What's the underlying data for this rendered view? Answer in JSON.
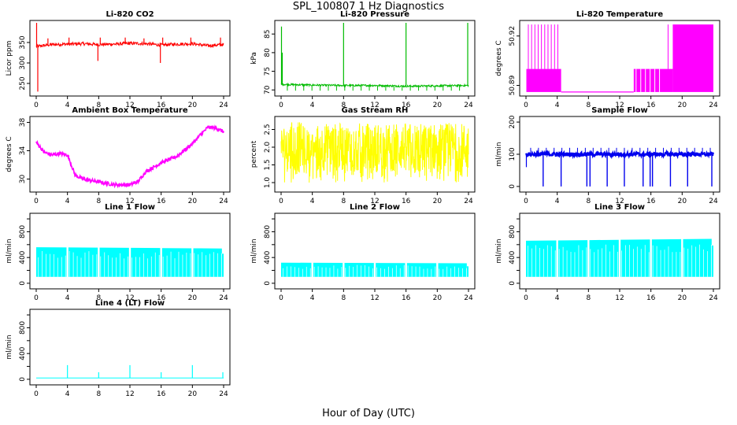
{
  "figure": {
    "title": "SPL_100807  1 Hz Diagnostics",
    "xlabel": "Hour of Day (UTC)"
  },
  "chart_data": [
    {
      "type": "line",
      "title": "Li-820 CO2",
      "ylabel": "Licor ppm",
      "xlim": [
        0,
        24
      ],
      "xticks": [
        0,
        4,
        8,
        12,
        16,
        20,
        24
      ],
      "ylim": [
        225,
        398
      ],
      "yticks": [
        250,
        300,
        350
      ],
      "color": "#ff0000",
      "profile": "co2",
      "series": [
        {
          "x": [
            0,
            2,
            4,
            6,
            8,
            10,
            12,
            14,
            16,
            18,
            20,
            22,
            24
          ],
          "y": [
            340,
            345,
            346,
            347,
            345,
            346,
            348,
            347,
            344,
            346,
            347,
            342,
            345
          ]
        }
      ],
      "spikes": [
        {
          "x": 0.05,
          "y": 398
        },
        {
          "x": 0.2,
          "y": 230
        },
        {
          "x": 1.5,
          "y": 360
        },
        {
          "x": 4.2,
          "y": 362
        },
        {
          "x": 7.9,
          "y": 305
        },
        {
          "x": 8.2,
          "y": 362
        },
        {
          "x": 11.4,
          "y": 362
        },
        {
          "x": 13.8,
          "y": 360
        },
        {
          "x": 15.9,
          "y": 300
        },
        {
          "x": 16.2,
          "y": 362
        },
        {
          "x": 19.8,
          "y": 362
        },
        {
          "x": 23.6,
          "y": 362
        }
      ]
    },
    {
      "type": "line",
      "title": "Li-820 Pressure",
      "ylabel": "kPa",
      "xlim": [
        0,
        24
      ],
      "xticks": [
        0,
        4,
        8,
        12,
        16,
        20,
        24
      ],
      "ylim": [
        69,
        88
      ],
      "yticks": [
        70,
        75,
        80,
        85
      ],
      "color": "#00bb00",
      "profile": "pressure",
      "series": [
        {
          "x": [
            0,
            4,
            8,
            12,
            16,
            20,
            24
          ],
          "y": [
            71.5,
            71.3,
            71.2,
            71.2,
            71.0,
            71.1,
            71.2
          ]
        }
      ],
      "spikes": [
        {
          "x": 0.05,
          "y": 87
        },
        {
          "x": 0.15,
          "y": 80
        },
        {
          "x": 8.0,
          "y": 88
        },
        {
          "x": 16.0,
          "y": 88
        },
        {
          "x": 23.9,
          "y": 88
        }
      ]
    },
    {
      "type": "line",
      "title": "Li-820 Temperature",
      "ylabel": "degrees C",
      "xlim": [
        0,
        24
      ],
      "xticks": [
        0,
        4,
        8,
        12,
        16,
        20,
        24
      ],
      "ylim": [
        50.885,
        50.928
      ],
      "yticks": [
        50.89,
        50.92
      ],
      "ytick_labels": [
        "50.89",
        "50.92"
      ],
      "extra_ytick": "50.9",
      "color": "#ff00ff",
      "profile": "licor_temp",
      "series": [
        {
          "x": [
            0,
            4.5,
            4.5,
            13.8,
            13.8,
            18.8,
            18.8,
            24
          ],
          "y": [
            50.9,
            50.9,
            50.886,
            50.886,
            50.9,
            50.9,
            50.925,
            50.925
          ]
        }
      ]
    },
    {
      "type": "line",
      "title": "Ambient Box Temperature",
      "ylabel": "degrees C",
      "xlim": [
        0,
        24
      ],
      "xticks": [
        0,
        4,
        8,
        12,
        16,
        20,
        24
      ],
      "ylim": [
        28.5,
        38.5
      ],
      "yticks": [
        30,
        34,
        38
      ],
      "color": "#ff00ff",
      "profile": "box_temp",
      "series": [
        {
          "x": [
            0,
            1,
            2,
            3,
            4,
            4.5,
            5,
            6,
            8,
            10,
            12,
            13,
            14,
            16,
            18,
            20,
            21,
            22,
            23,
            24
          ],
          "y": [
            35.2,
            33.8,
            33.4,
            33.6,
            33.4,
            32.0,
            30.5,
            30.0,
            29.6,
            29.2,
            29.2,
            29.6,
            31.0,
            32.3,
            33.2,
            35.0,
            36.2,
            37.3,
            37.2,
            36.7
          ]
        }
      ]
    },
    {
      "type": "line",
      "title": "Gas Stream RH",
      "ylabel": "percent",
      "xlim": [
        0,
        24
      ],
      "xticks": [
        0,
        4,
        8,
        12,
        16,
        20,
        24
      ],
      "ylim": [
        0.8,
        2.8
      ],
      "yticks": [
        1.0,
        1.5,
        2.0,
        2.5
      ],
      "ytick_labels": [
        "1.0",
        "1.5",
        "2.0",
        "2.5"
      ],
      "color": "#ffff00",
      "profile": "rh",
      "series": [
        {
          "x": [
            0,
            24
          ],
          "y": [
            1.0,
            2.7
          ]
        }
      ]
    },
    {
      "type": "line",
      "title": "Sample Flow",
      "ylabel": "ml/min",
      "xlim": [
        0,
        24
      ],
      "xticks": [
        0,
        4,
        8,
        12,
        16,
        20,
        24
      ],
      "ylim": [
        -10,
        210
      ],
      "yticks": [
        0,
        100,
        200
      ],
      "color": "#0000ee",
      "profile": "sample_flow",
      "series": [
        {
          "x": [
            0,
            24
          ],
          "y": [
            100,
            100
          ]
        }
      ],
      "dips": [
        2.2,
        4.5,
        7.8,
        8.2,
        10.4,
        12.6,
        15.0,
        15.9,
        16.2,
        18.5,
        20.7,
        23.8
      ]
    },
    {
      "type": "area",
      "title": "Line 1 Flow",
      "ylabel": "ml/min",
      "xlim": [
        0,
        24
      ],
      "xticks": [
        0,
        4,
        8,
        12,
        16,
        20,
        24
      ],
      "ylim": [
        -50,
        1050
      ],
      "yticks": [
        0,
        200,
        400,
        600,
        800,
        1000
      ],
      "ytick_labels": [
        "0",
        "400",
        "800"
      ],
      "color": "#00ffff",
      "profile": "line_flow",
      "series": [
        {
          "x": [
            0,
            24
          ],
          "y_top": [
            560,
            540
          ],
          "y_base": 100
        }
      ],
      "gaps": [
        4,
        8,
        12,
        16,
        20
      ]
    },
    {
      "type": "area",
      "title": "Line 2 Flow",
      "ylabel": "ml/min",
      "xlim": [
        0,
        24
      ],
      "xticks": [
        0,
        4,
        8,
        12,
        16,
        20,
        24
      ],
      "ylim": [
        -50,
        1050
      ],
      "yticks": [
        0,
        200,
        400,
        600,
        800,
        1000
      ],
      "ytick_labels": [
        "0",
        "400",
        "800"
      ],
      "color": "#00ffff",
      "profile": "line_flow",
      "series": [
        {
          "x": [
            0,
            24
          ],
          "y_top": [
            320,
            310
          ],
          "y_base": 100
        }
      ],
      "gaps": [
        4,
        8,
        12,
        16,
        20
      ]
    },
    {
      "type": "area",
      "title": "Line 3 Flow",
      "ylabel": "ml/min",
      "xlim": [
        0,
        24
      ],
      "xticks": [
        0,
        4,
        8,
        12,
        16,
        20,
        24
      ],
      "ylim": [
        -50,
        1050
      ],
      "yticks": [
        0,
        200,
        400,
        600,
        800,
        1000
      ],
      "ytick_labels": [
        "0",
        "400",
        "800"
      ],
      "color": "#00ffff",
      "profile": "line_flow",
      "series": [
        {
          "x": [
            0,
            24
          ],
          "y_top": [
            660,
            690
          ],
          "y_base": 100
        }
      ],
      "gaps": [
        4,
        8,
        12,
        16,
        20
      ]
    },
    {
      "type": "line",
      "title": "Line 4 (LT) Flow",
      "ylabel": "ml/min",
      "xlim": [
        0,
        24
      ],
      "xticks": [
        0,
        4,
        8,
        12,
        16,
        20,
        24
      ],
      "ylim": [
        -50,
        1050
      ],
      "yticks": [
        0,
        200,
        400,
        600,
        800,
        1000
      ],
      "ytick_labels": [
        "0",
        "400",
        "800"
      ],
      "color": "#00ffff",
      "profile": "line4",
      "series": [
        {
          "x": [
            0,
            24
          ],
          "y": [
            20,
            20
          ]
        }
      ],
      "spikes": [
        {
          "x": 4.0,
          "y": 220
        },
        {
          "x": 8.0,
          "y": 110
        },
        {
          "x": 12.0,
          "y": 220
        },
        {
          "x": 16.0,
          "y": 110
        },
        {
          "x": 20.0,
          "y": 220
        },
        {
          "x": 23.9,
          "y": 110
        }
      ]
    }
  ]
}
